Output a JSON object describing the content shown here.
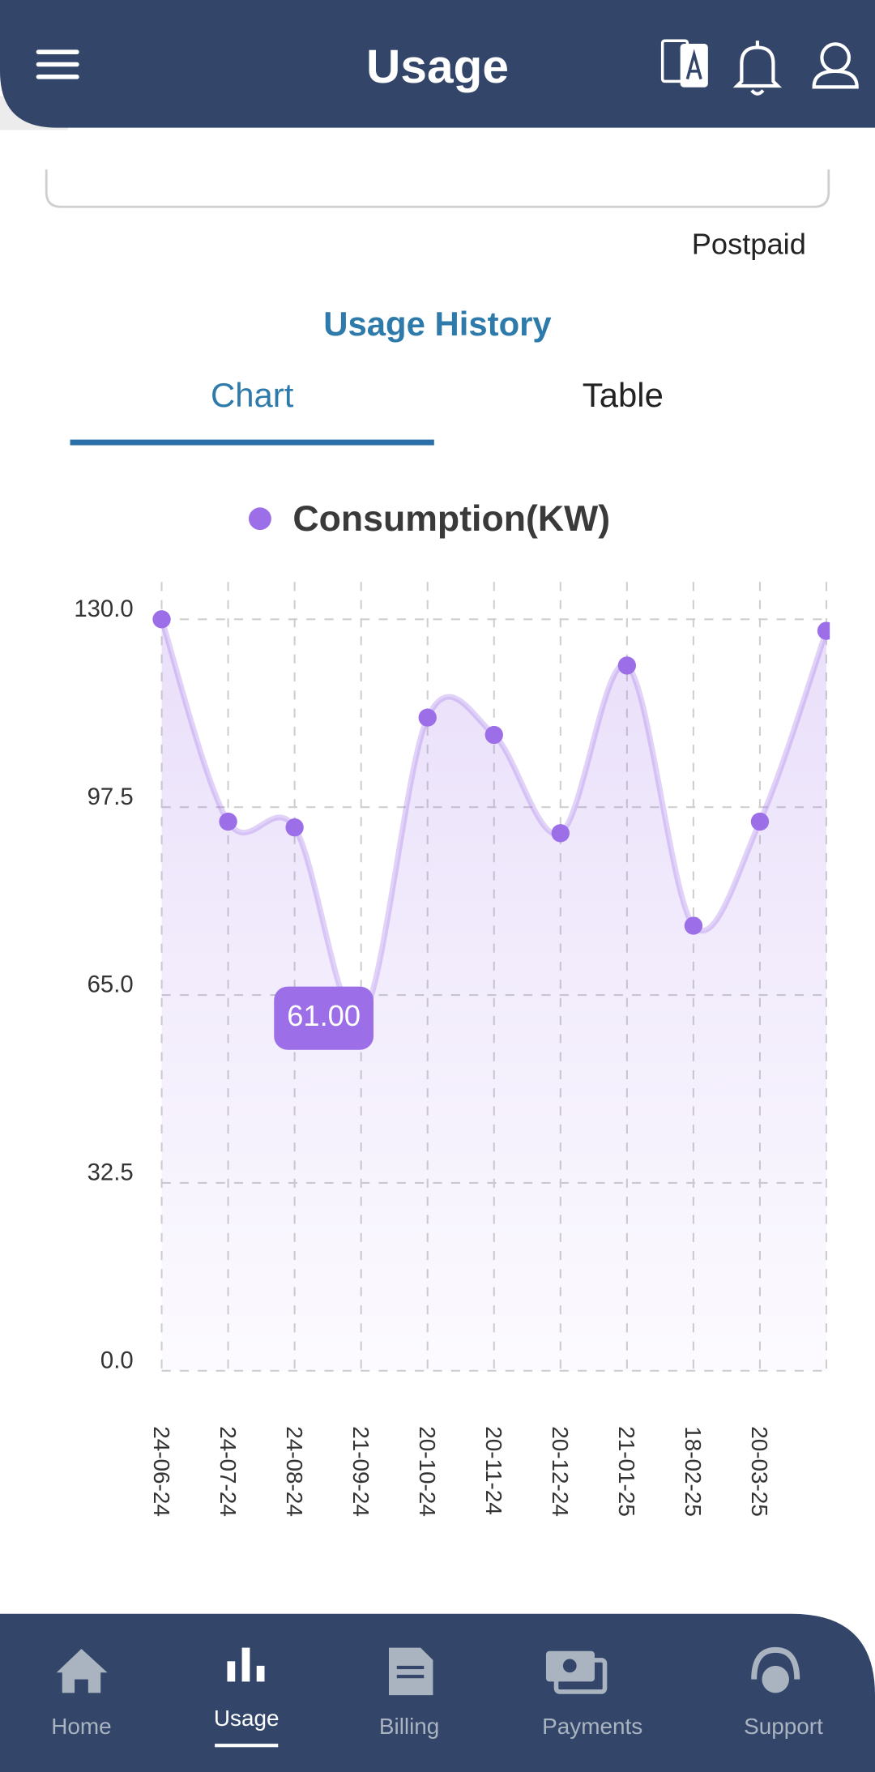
{
  "header": {
    "title": "Usage"
  },
  "account": {
    "type": "Postpaid"
  },
  "section": {
    "title": "Usage History",
    "tabs": [
      "Chart",
      "Table"
    ]
  },
  "chart_data": {
    "type": "line",
    "series": [
      {
        "name": "Consumption(KW)",
        "color": "#9c6ee8",
        "values": [
          130,
          95,
          94,
          61,
          113,
          110,
          93,
          122,
          77,
          95,
          128
        ],
        "value_labels": [
          null,
          null,
          null,
          "61.00",
          null,
          null,
          null,
          null,
          null,
          null,
          null
        ]
      }
    ],
    "categories": [
      "24-06-24",
      "24-07-24",
      "24-08-24",
      "21-09-24",
      "20-10-24",
      "20-11-24",
      "20-12-24",
      "21-01-25",
      "18-02-25",
      "20-03-25",
      null
    ],
    "ylim": [
      0,
      130
    ],
    "yticks": [
      {
        "value": 0,
        "label": "0.0"
      },
      {
        "value": 32.5,
        "label": "32.5"
      },
      {
        "value": 65,
        "label": "65.0"
      },
      {
        "value": 97.5,
        "label": "97.5"
      },
      {
        "value": 130,
        "label": "130.0"
      }
    ],
    "grid": true,
    "legend": "top"
  },
  "nav": {
    "items": [
      "Home",
      "Usage",
      "Billing",
      "Payments",
      "Support"
    ],
    "active": 1
  }
}
